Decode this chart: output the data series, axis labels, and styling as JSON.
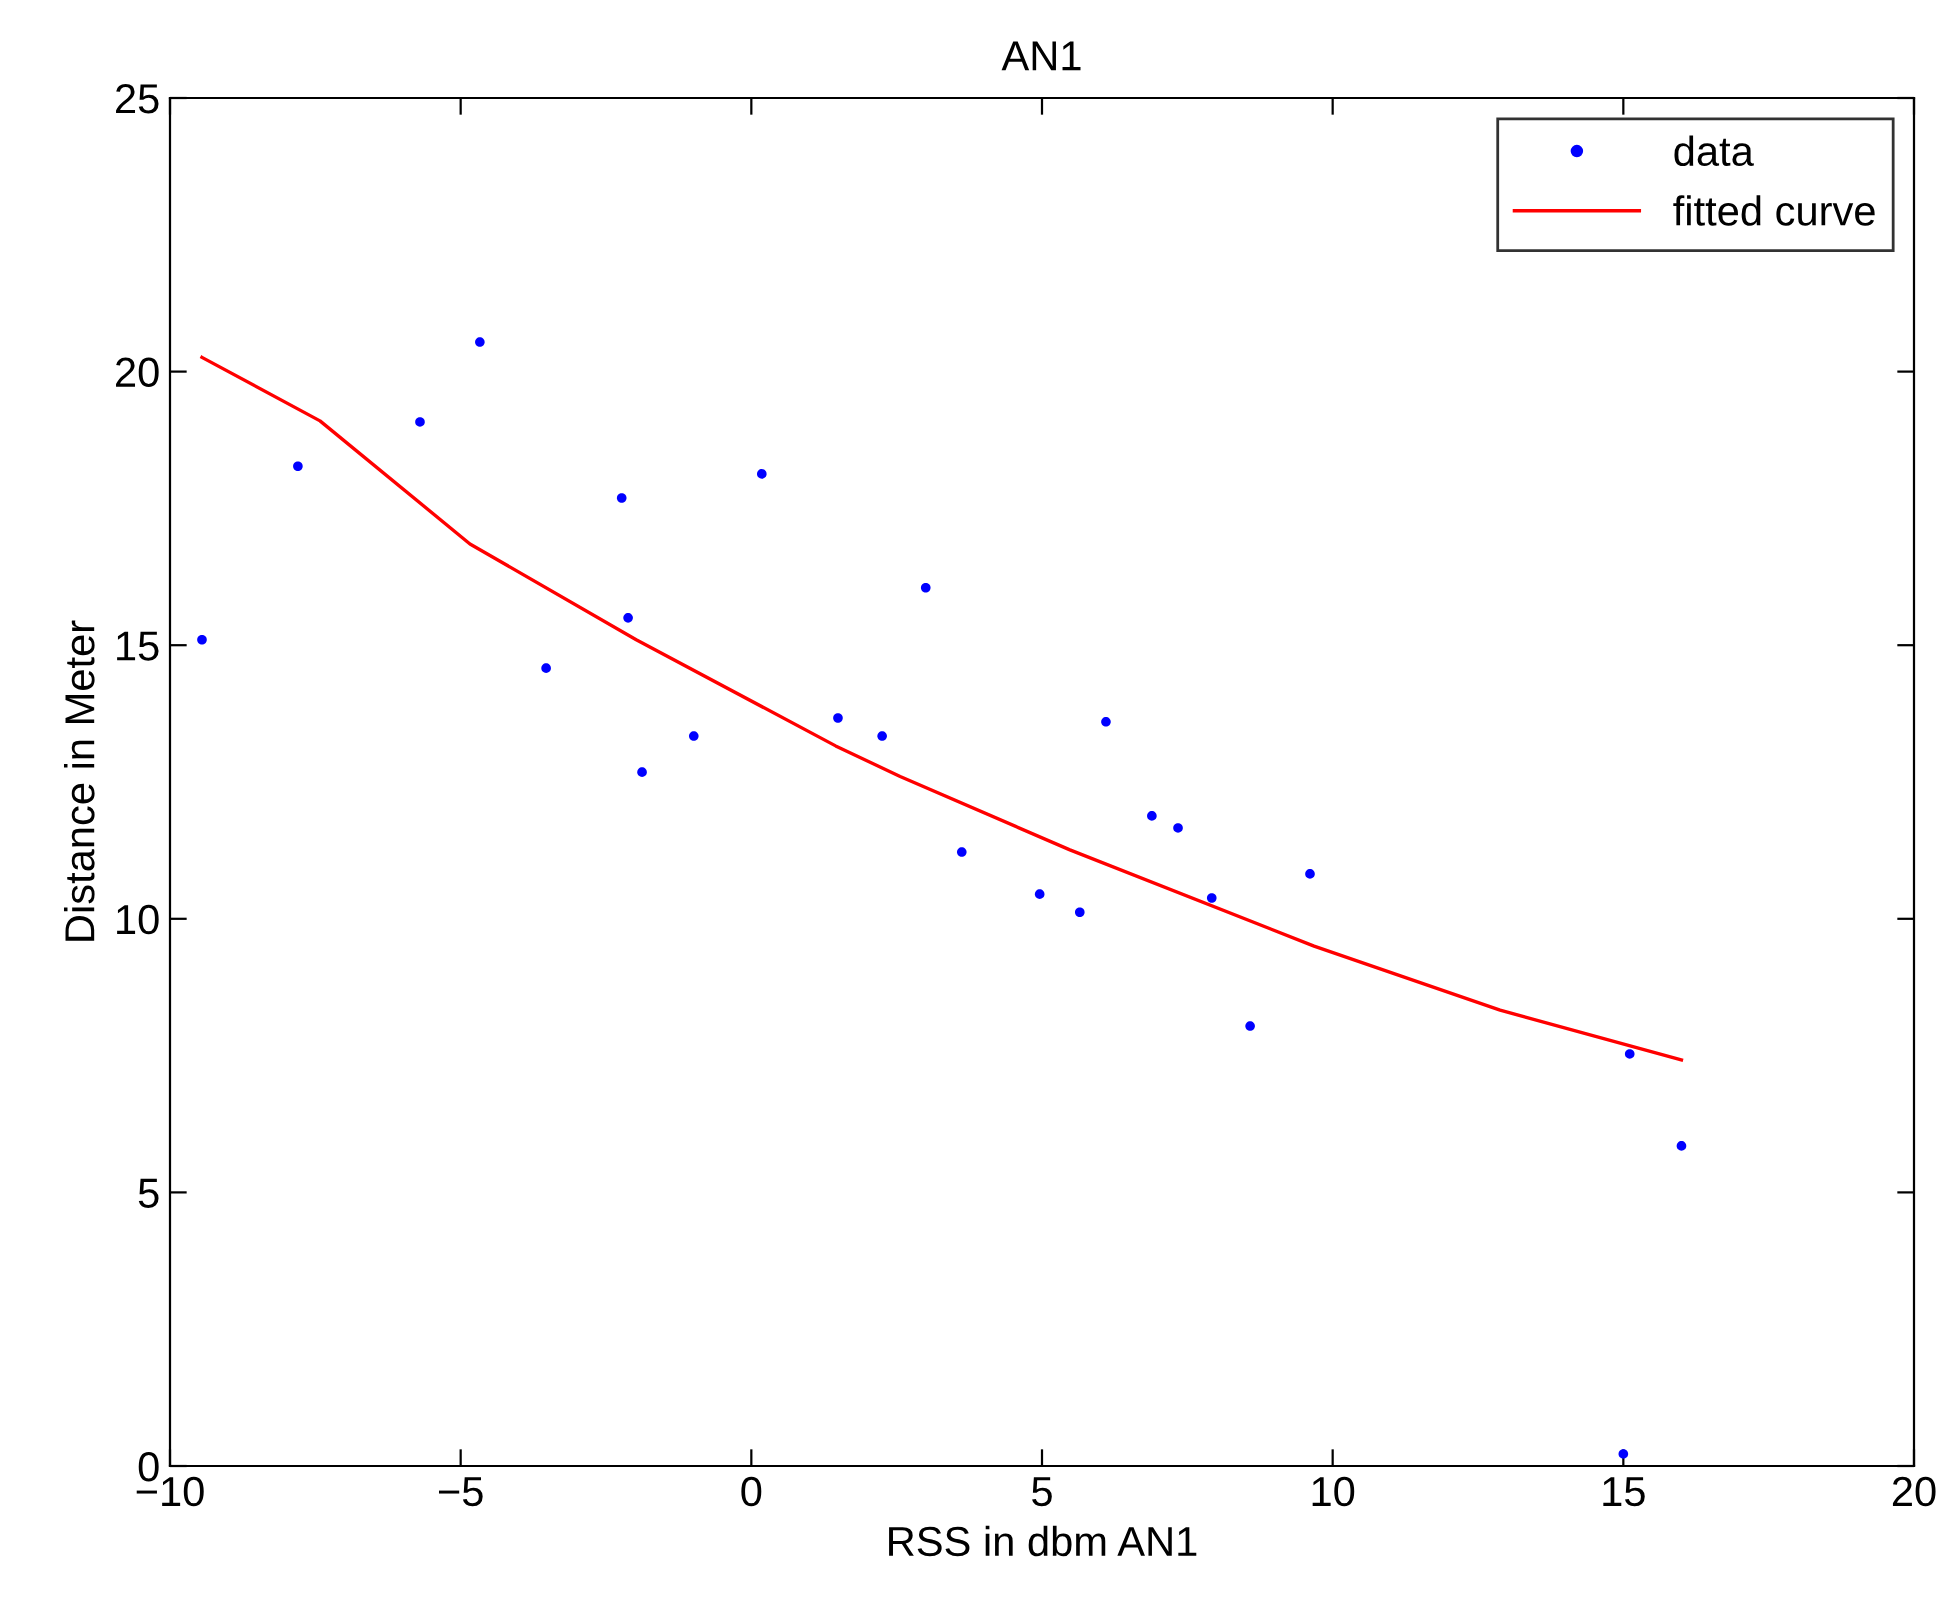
{
  "chart_data": {
    "type": "scatter",
    "title": "AN1",
    "xlabel": "RSS in dbm AN1",
    "ylabel": "Distance in Meter",
    "xlim": [
      -10,
      20
    ],
    "ylim": [
      0,
      25
    ],
    "xticks": [
      -10,
      -5,
      0,
      5,
      10,
      15,
      20
    ],
    "yticks": [
      0,
      5,
      10,
      15,
      20,
      25
    ],
    "grid": false,
    "legend": "top right",
    "series": [
      {
        "name": "data",
        "color": "#0000ff",
        "marker": "circle",
        "x": [
          -9.45,
          -7.8,
          -5.7,
          -4.67,
          -3.53,
          -2.23,
          -2.12,
          -1.88,
          -0.99,
          0.18,
          1.49,
          2.25,
          3.0,
          3.62,
          4.96,
          5.65,
          6.1,
          6.89,
          7.34,
          7.92,
          8.58,
          9.61,
          15.11,
          16.0,
          15.0
        ],
        "values": [
          15.1,
          18.27,
          19.08,
          20.54,
          14.58,
          17.69,
          15.5,
          12.68,
          13.34,
          18.13,
          13.67,
          13.34,
          16.05,
          11.22,
          10.45,
          10.12,
          13.6,
          11.88,
          11.66,
          10.38,
          8.04,
          10.82,
          7.53,
          5.85,
          0.22
        ]
      },
      {
        "name": "fitted curve",
        "type": "line",
        "color": "#ff0000",
        "marker": "none",
        "line_style": "solid",
        "x": [
          -9.45,
          -7.42,
          -4.84,
          -1.98,
          1.45,
          2.56,
          5.48,
          9.68,
          12.88,
          16.0
        ],
        "values": [
          20.26,
          19.1,
          16.85,
          15.1,
          13.16,
          12.6,
          11.26,
          9.5,
          8.33,
          7.42
        ]
      }
    ]
  }
}
